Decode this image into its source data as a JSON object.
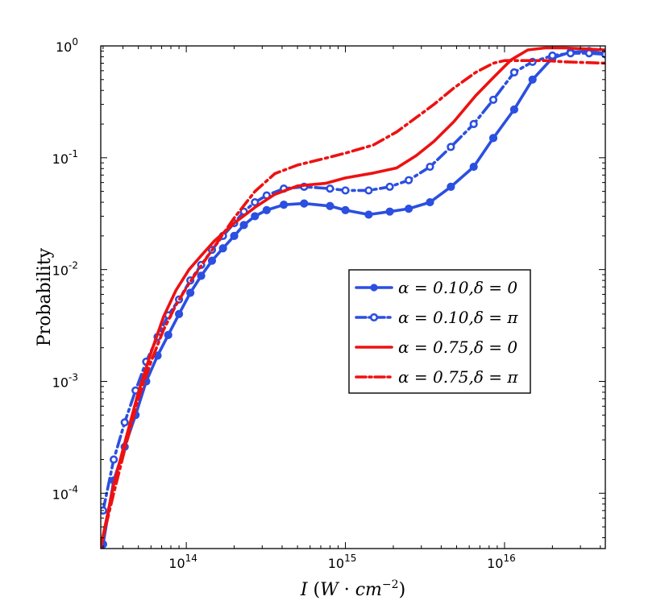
{
  "chart_data": {
    "type": "line",
    "xscale": "log",
    "yscale": "log",
    "xlim": [
      29000000000000.0,
      4.3e+16
    ],
    "ylim": [
      3.2e-05,
      1.0
    ],
    "xlabel": "I (W · cm⁻²)",
    "ylabel": "Probability",
    "x_ticks": [
      {
        "value": 100000000000000.0,
        "base": "10",
        "exp": "14"
      },
      {
        "value": 1000000000000000.0,
        "base": "10",
        "exp": "15"
      },
      {
        "value": 1e+16,
        "base": "10",
        "exp": "16"
      }
    ],
    "y_ticks": [
      {
        "value": 0.0001,
        "base": "10",
        "exp": "-4"
      },
      {
        "value": 0.001,
        "base": "10",
        "exp": "-3"
      },
      {
        "value": 0.01,
        "base": "10",
        "exp": "-2"
      },
      {
        "value": 0.1,
        "base": "10",
        "exp": "-1"
      },
      {
        "value": 1,
        "base": "10",
        "exp": "0"
      }
    ],
    "legend_position": "center-right",
    "series": [
      {
        "name": "α = 0.10,δ = 0",
        "color": "#2b4fe0",
        "style": "solid",
        "marker": "filled-circle",
        "x": [
          30000000000000.0,
          35000000000000.0,
          41000000000000.0,
          48000000000000.0,
          56000000000000.0,
          66000000000000.0,
          77000000000000.0,
          90000000000000.0,
          106000000000000.0,
          124000000000000.0,
          145000000000000.0,
          170000000000000.0,
          200000000000000.0,
          230000000000000.0,
          270000000000000.0,
          320000000000000.0,
          410000000000000.0,
          550000000000000.0,
          800000000000000.0,
          1000000000000000.0,
          1400000000000000.0,
          1900000000000000.0,
          2500000000000000.0,
          3400000000000000.0,
          4600000000000000.0,
          6400000000000000.0,
          8500000000000000.0,
          1.15e+16,
          1.5e+16,
          2e+16,
          2.6e+16,
          3.4e+16,
          4.3e+16
        ],
        "y": [
          3.5e-05,
          0.00013,
          0.00026,
          0.0005,
          0.001,
          0.0017,
          0.0026,
          0.004,
          0.0062,
          0.0088,
          0.012,
          0.0155,
          0.02,
          0.025,
          0.03,
          0.034,
          0.038,
          0.039,
          0.037,
          0.034,
          0.031,
          0.033,
          0.035,
          0.04,
          0.055,
          0.083,
          0.15,
          0.27,
          0.5,
          0.78,
          0.88,
          0.9,
          0.85
        ]
      },
      {
        "name": "α = 0.10,δ = π",
        "color": "#2b4fe0",
        "style": "dashdot",
        "marker": "open-circle",
        "x": [
          30000000000000.0,
          35000000000000.0,
          41000000000000.0,
          48000000000000.0,
          56000000000000.0,
          66000000000000.0,
          77000000000000.0,
          90000000000000.0,
          106000000000000.0,
          124000000000000.0,
          145000000000000.0,
          170000000000000.0,
          200000000000000.0,
          230000000000000.0,
          270000000000000.0,
          320000000000000.0,
          410000000000000.0,
          550000000000000.0,
          800000000000000.0,
          1000000000000000.0,
          1400000000000000.0,
          1900000000000000.0,
          2500000000000000.0,
          3400000000000000.0,
          4600000000000000.0,
          6400000000000000.0,
          8500000000000000.0,
          1.15e+16,
          1.5e+16,
          2e+16,
          2.6e+16,
          3.4e+16,
          4.3e+16
        ],
        "y": [
          7e-05,
          0.0002,
          0.00043,
          0.00083,
          0.0015,
          0.0025,
          0.0039,
          0.0054,
          0.008,
          0.011,
          0.015,
          0.02,
          0.026,
          0.033,
          0.04,
          0.046,
          0.053,
          0.055,
          0.053,
          0.051,
          0.051,
          0.055,
          0.063,
          0.083,
          0.125,
          0.2,
          0.33,
          0.58,
          0.72,
          0.82,
          0.86,
          0.86,
          0.84
        ]
      },
      {
        "name": "α = 0.75,δ = 0",
        "color": "#ee1111",
        "style": "solid",
        "marker": "none",
        "x": [
          29000000000000.0,
          35000000000000.0,
          42000000000000.0,
          50000000000000.0,
          60000000000000.0,
          72000000000000.0,
          86000000000000.0,
          104000000000000.0,
          125000000000000.0,
          150000000000000.0,
          200000000000000.0,
          270000000000000.0,
          360000000000000.0,
          500000000000000.0,
          750000000000000.0,
          1000000000000000.0,
          1500000000000000.0,
          2100000000000000.0,
          2800000000000000.0,
          3600000000000000.0,
          4800000000000000.0,
          6600000000000000.0,
          8500000000000000.0,
          1.1e+16,
          1.4e+16,
          1.8e+16,
          2.4e+16,
          3.2e+16,
          4.3e+16
        ],
        "y": [
          3.3e-05,
          0.00012,
          0.00032,
          0.0008,
          0.0018,
          0.0038,
          0.0065,
          0.01,
          0.0135,
          0.018,
          0.026,
          0.036,
          0.047,
          0.056,
          0.059,
          0.066,
          0.073,
          0.081,
          0.105,
          0.14,
          0.21,
          0.36,
          0.52,
          0.75,
          0.92,
          0.96,
          0.96,
          0.94,
          0.92
        ]
      },
      {
        "name": "α = 0.75,δ = π",
        "color": "#ee1111",
        "style": "dashdot",
        "marker": "none",
        "x": [
          29000000000000.0,
          35000000000000.0,
          42000000000000.0,
          50000000000000.0,
          60000000000000.0,
          72000000000000.0,
          86000000000000.0,
          104000000000000.0,
          125000000000000.0,
          150000000000000.0,
          200000000000000.0,
          270000000000000.0,
          360000000000000.0,
          500000000000000.0,
          750000000000000.0,
          1000000000000000.0,
          1500000000000000.0,
          2100000000000000.0,
          2800000000000000.0,
          3600000000000000.0,
          4800000000000000.0,
          6600000000000000.0,
          8500000000000000.0,
          1e+16,
          1.3e+16,
          1.8e+16,
          2.4e+16,
          3.2e+16,
          4.3e+16
        ],
        "y": [
          3.3e-05,
          0.0001,
          0.00028,
          0.0007,
          0.0015,
          0.0029,
          0.0048,
          0.0075,
          0.011,
          0.016,
          0.029,
          0.05,
          0.072,
          0.086,
          0.099,
          0.11,
          0.13,
          0.17,
          0.23,
          0.3,
          0.42,
          0.58,
          0.7,
          0.74,
          0.74,
          0.74,
          0.72,
          0.71,
          0.7
        ]
      }
    ]
  }
}
